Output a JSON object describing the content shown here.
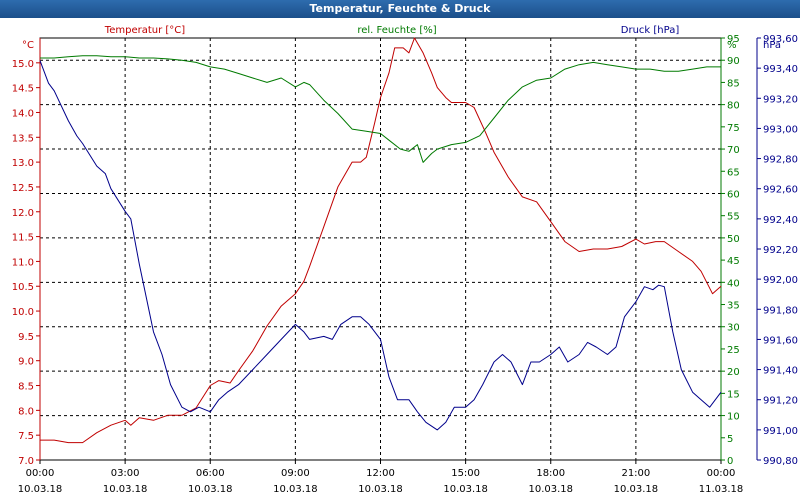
{
  "window": {
    "title": "Temperatur, Feuchte & Druck"
  },
  "colors": {
    "temperature": "#c00000",
    "humidity": "#007a00",
    "pressure": "#00008b",
    "grid": "#000000",
    "titlebar": "#1f5a9a"
  },
  "chart_data": {
    "type": "line",
    "title": "Temperatur, Feuchte & Druck",
    "grid": true,
    "x_ticks": [
      {
        "time": "00:00",
        "date": "10.03.18"
      },
      {
        "time": "03:00",
        "date": "10.03.18"
      },
      {
        "time": "06:00",
        "date": "10.03.18"
      },
      {
        "time": "09:00",
        "date": "10.03.18"
      },
      {
        "time": "12:00",
        "date": "10.03.18"
      },
      {
        "time": "15:00",
        "date": "10.03.18"
      },
      {
        "time": "18:00",
        "date": "10.03.18"
      },
      {
        "time": "21:00",
        "date": "10.03.18"
      },
      {
        "time": "00:00",
        "date": "11.03.18"
      }
    ],
    "x_hours_range": [
      0,
      24
    ],
    "axes": {
      "temperature": {
        "label": "Temperatur [°C]",
        "unit": "°C",
        "range": [
          7.0,
          15.5
        ],
        "ticks": [
          "7.0",
          "7.5",
          "8.0",
          "8.5",
          "9.0",
          "9.5",
          "10.0",
          "10.5",
          "11.0",
          "11.5",
          "12.0",
          "12.5",
          "13.0",
          "13.5",
          "14.0",
          "14.5",
          "15.0"
        ]
      },
      "humidity": {
        "label": "rel. Feuchte [%]",
        "unit": "%",
        "range": [
          0,
          95
        ],
        "ticks": [
          "0",
          "5",
          "10",
          "15",
          "20",
          "25",
          "30",
          "35",
          "40",
          "45",
          "50",
          "55",
          "60",
          "65",
          "70",
          "75",
          "80",
          "85",
          "90",
          "95"
        ]
      },
      "pressure": {
        "label": "Druck [hPa]",
        "unit": "hPa",
        "range": [
          990.8,
          993.6
        ],
        "ticks": [
          "990,80",
          "991,00",
          "991,20",
          "991,40",
          "991,60",
          "991,80",
          "992,00",
          "992,20",
          "992,40",
          "992,60",
          "992,80",
          "993,00",
          "993,20",
          "993,40",
          "993,60"
        ]
      }
    },
    "series": [
      {
        "name": "Temperatur [°C]",
        "axis": "temperature",
        "x": [
          0,
          0.5,
          1,
          1.5,
          2,
          2.5,
          3,
          3.2,
          3.5,
          4,
          4.5,
          5,
          5.5,
          6,
          6.3,
          6.7,
          7,
          7.5,
          8,
          8.5,
          9,
          9.3,
          9.5,
          10,
          10.5,
          11,
          11.3,
          11.5,
          11.8,
          12,
          12.3,
          12.5,
          12.8,
          13,
          13.2,
          13.5,
          13.8,
          14,
          14.3,
          14.5,
          15,
          15.3,
          15.7,
          16,
          16.5,
          17,
          17.5,
          18,
          18.5,
          19,
          19.5,
          20,
          20.5,
          21,
          21.3,
          21.7,
          22,
          22.5,
          23,
          23.3,
          23.7,
          24
        ],
        "values": [
          7.4,
          7.4,
          7.35,
          7.35,
          7.55,
          7.7,
          7.8,
          7.7,
          7.85,
          7.8,
          7.9,
          7.9,
          8.05,
          8.5,
          8.6,
          8.55,
          8.8,
          9.2,
          9.7,
          10.1,
          10.35,
          10.6,
          10.9,
          11.7,
          12.5,
          13.0,
          13.0,
          13.1,
          13.8,
          14.3,
          14.8,
          15.3,
          15.3,
          15.2,
          15.5,
          15.2,
          14.8,
          14.5,
          14.3,
          14.2,
          14.2,
          14.1,
          13.6,
          13.2,
          12.7,
          12.3,
          12.2,
          11.8,
          11.4,
          11.2,
          11.25,
          11.25,
          11.3,
          11.45,
          11.35,
          11.4,
          11.4,
          11.2,
          11.0,
          10.8,
          10.35,
          10.5
        ]
      },
      {
        "name": "rel. Feuchte [%]",
        "axis": "humidity",
        "x": [
          0,
          0.5,
          1,
          1.5,
          2,
          2.5,
          3,
          3.5,
          4,
          4.5,
          5,
          5.5,
          6,
          6.5,
          7,
          7.5,
          8,
          8.5,
          9,
          9.3,
          9.5,
          10,
          10.5,
          11,
          11.5,
          12,
          12.3,
          12.7,
          13,
          13.3,
          13.5,
          13.8,
          14,
          14.5,
          15,
          15.5,
          16,
          16.5,
          17,
          17.5,
          18,
          18.5,
          19,
          19.5,
          20,
          20.5,
          21,
          21.5,
          22,
          22.5,
          23,
          23.5,
          24
        ],
        "values": [
          90.5,
          90.5,
          90.8,
          91,
          91,
          90.8,
          90.8,
          90.5,
          90.5,
          90.3,
          90,
          89.5,
          88.5,
          88,
          87,
          86,
          85,
          86,
          84,
          85,
          84.5,
          81,
          78,
          74.5,
          74,
          73.5,
          72,
          70,
          69.5,
          71,
          67,
          69,
          70,
          71,
          71.5,
          73,
          77,
          81,
          84,
          85.5,
          86,
          88,
          89,
          89.5,
          89,
          88.5,
          88,
          88,
          87.5,
          87.5,
          88,
          88.5,
          88.5
        ]
      },
      {
        "name": "Druck [hPa]",
        "axis": "pressure",
        "x": [
          0,
          0.3,
          0.5,
          1,
          1.3,
          1.5,
          2,
          2.3,
          2.5,
          3,
          3.2,
          3.5,
          4,
          4.3,
          4.6,
          5,
          5.3,
          5.6,
          6,
          6.3,
          6.6,
          7,
          7.5,
          8,
          8.5,
          9,
          9.3,
          9.5,
          10,
          10.3,
          10.6,
          11,
          11.3,
          11.6,
          12,
          12.3,
          12.6,
          13,
          13.3,
          13.6,
          14,
          14.3,
          14.6,
          15,
          15.3,
          15.6,
          16,
          16.3,
          16.6,
          17,
          17.3,
          17.6,
          18,
          18.3,
          18.6,
          19,
          19.3,
          19.6,
          20,
          20.3,
          20.6,
          21,
          21.3,
          21.6,
          21.8,
          22,
          22.3,
          22.6,
          23,
          23.3,
          23.6,
          24
        ],
        "values": [
          993.45,
          993.3,
          993.25,
          993.05,
          992.95,
          992.9,
          992.75,
          992.7,
          992.6,
          992.45,
          992.4,
          992.1,
          991.65,
          991.5,
          991.3,
          991.15,
          991.12,
          991.15,
          991.12,
          991.2,
          991.25,
          991.3,
          991.4,
          991.5,
          991.6,
          991.7,
          991.65,
          991.6,
          991.62,
          991.6,
          991.7,
          991.75,
          991.75,
          991.7,
          991.6,
          991.35,
          991.2,
          991.2,
          991.12,
          991.05,
          991.0,
          991.05,
          991.15,
          991.15,
          991.2,
          991.3,
          991.45,
          991.5,
          991.45,
          991.3,
          991.45,
          991.45,
          991.5,
          991.55,
          991.45,
          991.5,
          991.58,
          991.55,
          991.5,
          991.55,
          991.75,
          991.85,
          991.95,
          991.93,
          991.96,
          991.95,
          991.65,
          991.4,
          991.25,
          991.2,
          991.15,
          991.25
        ]
      }
    ]
  }
}
